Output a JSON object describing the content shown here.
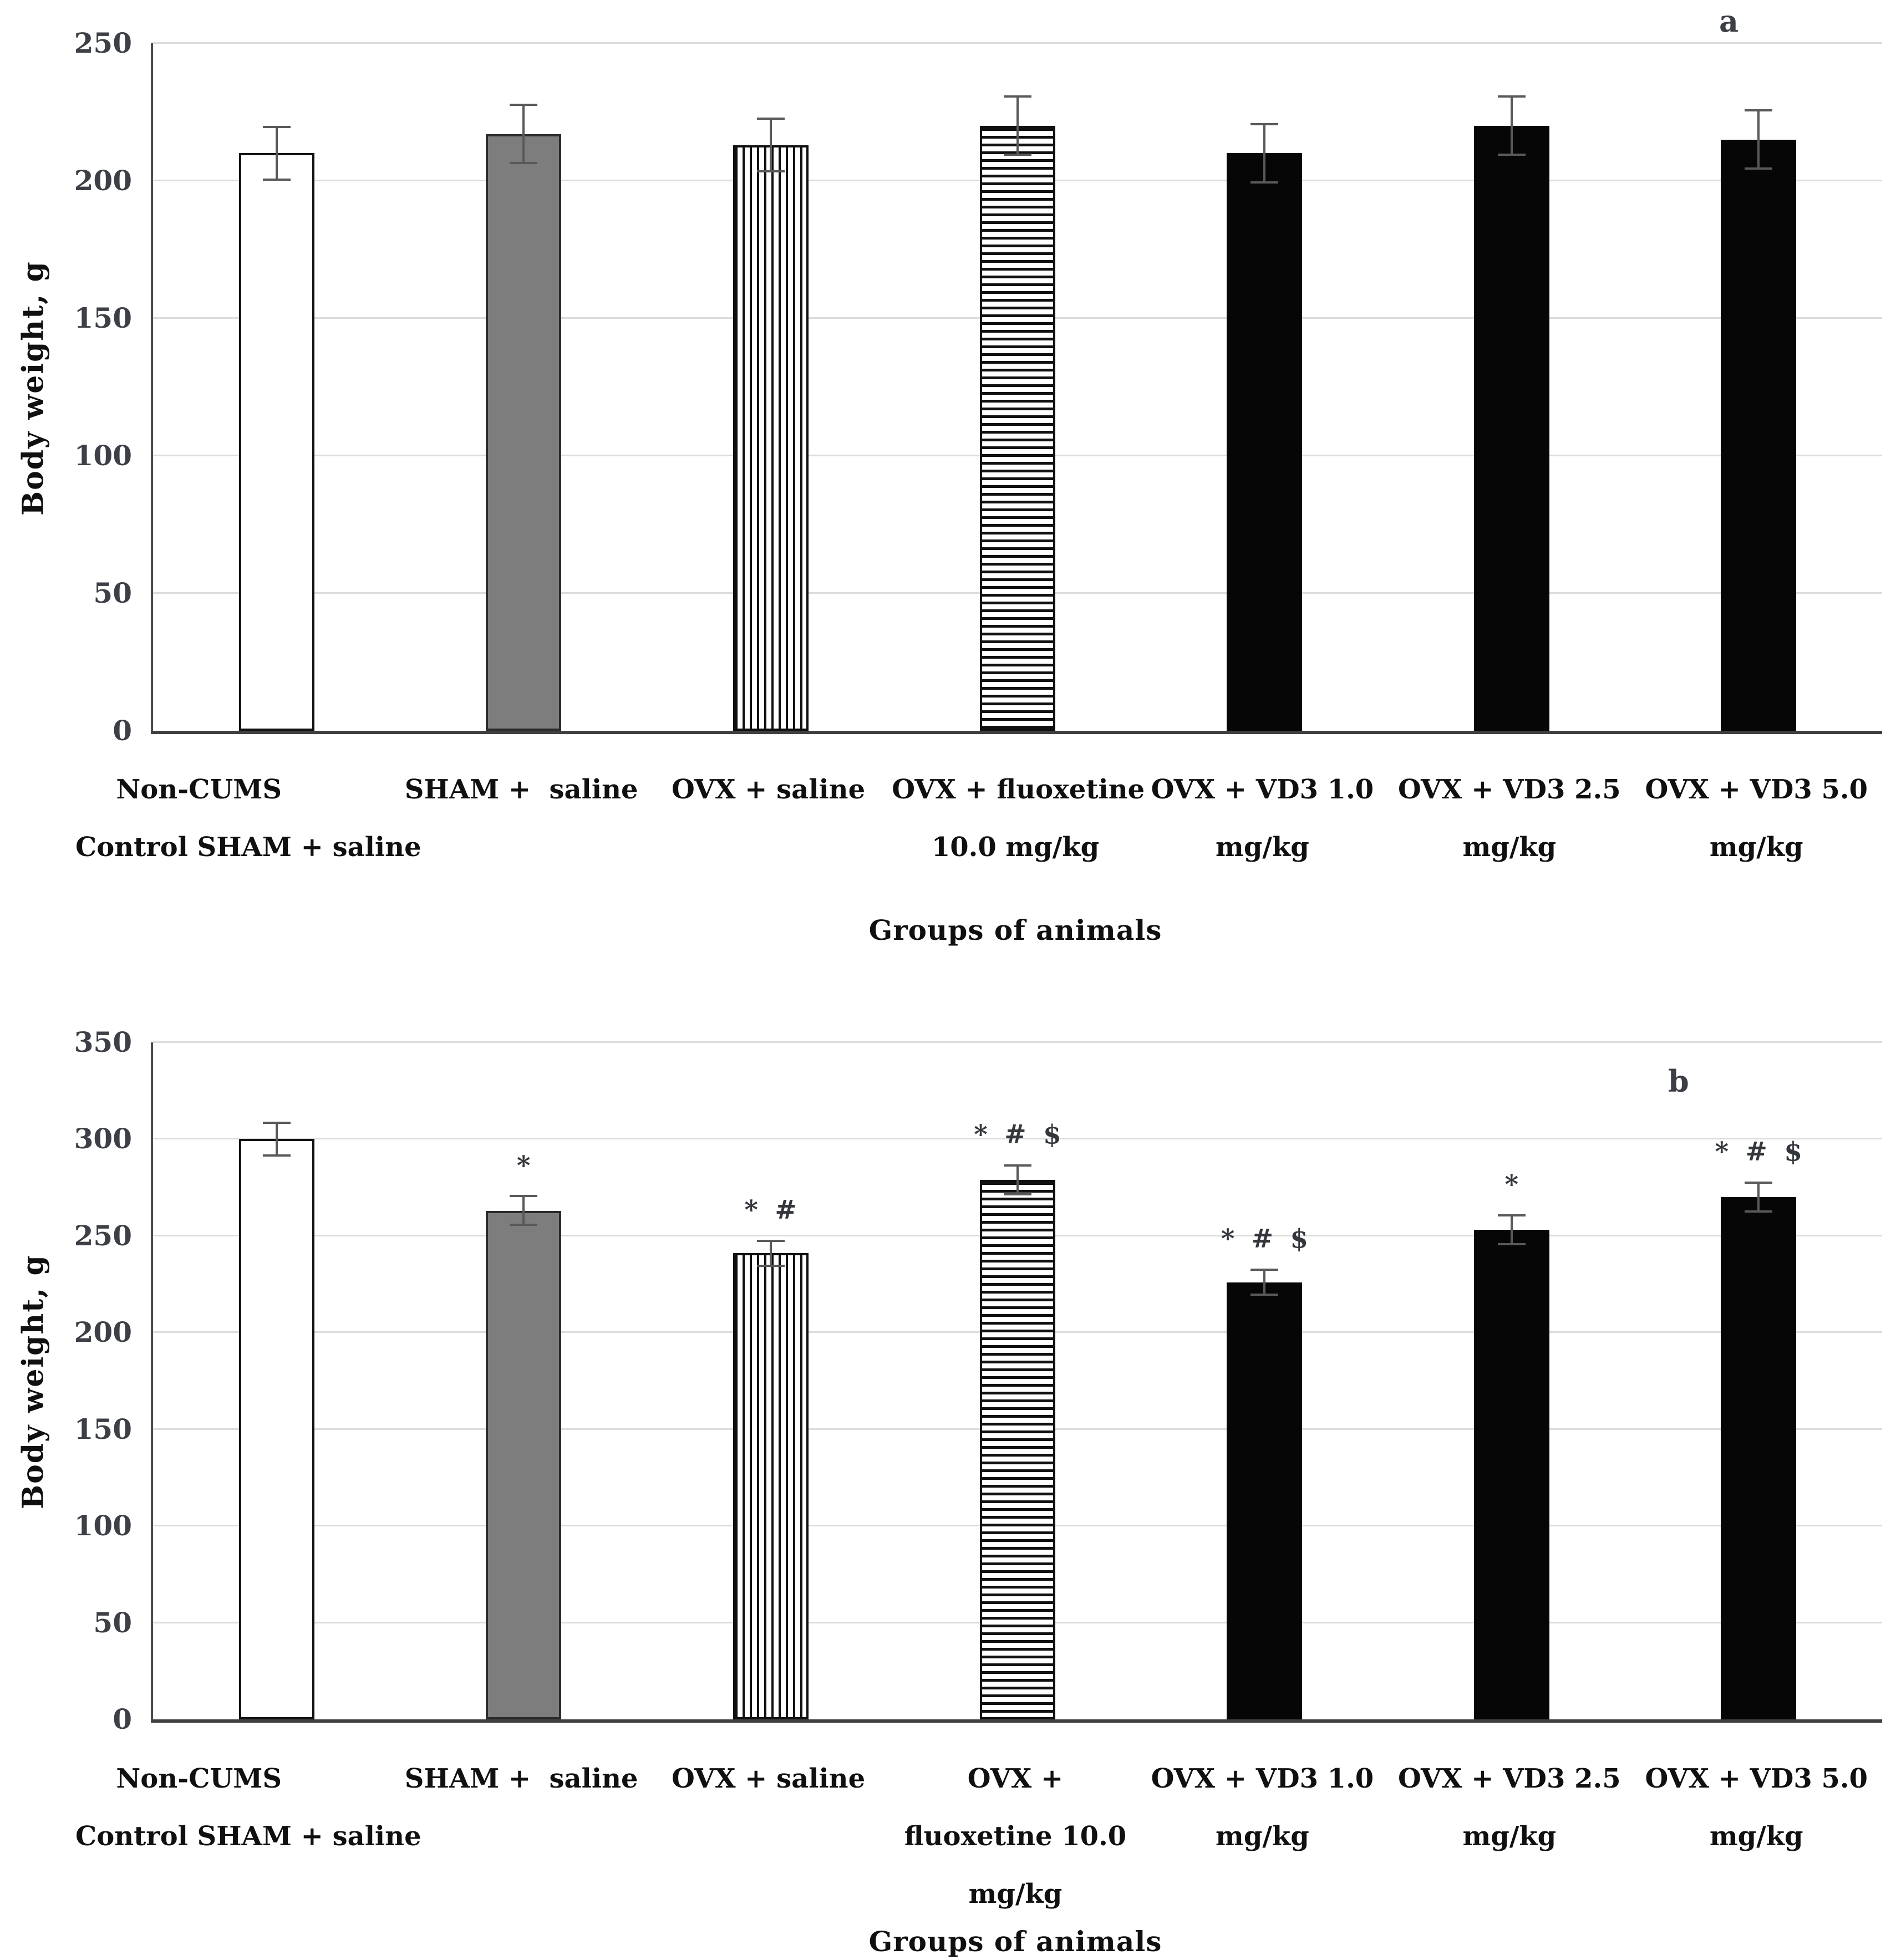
{
  "figure": {
    "background": "#ffffff",
    "panel_count": 2
  },
  "styles": {
    "gray_fill": "#7d7d7d",
    "black_fill": "#060606",
    "white_fill": "#ffffff",
    "axis_color": "#4a4a4a",
    "gridline_color": "#dcdcdc",
    "error_bar_color": "#595959",
    "text_color": "#151515"
  },
  "chart_data": [
    {
      "type": "bar",
      "panel_label": "a",
      "ylabel": "Body weight, g",
      "xlabel": "Groups of animals",
      "ylim": [
        0,
        250
      ],
      "ytick_step": 50,
      "yticks": [
        0,
        50,
        100,
        150,
        200,
        250
      ],
      "grid": true,
      "legend": "none",
      "categories": [
        [
          "Non-CUMS",
          "Control SHAM + saline"
        ],
        [
          "SHAM +  saline"
        ],
        [
          "OVX + saline"
        ],
        [
          "OVX + fluoxetine",
          "10.0 mg/kg"
        ],
        [
          "OVX + VD3 1.0",
          "mg/kg"
        ],
        [
          "OVX + VD3 2.5",
          "mg/kg"
        ],
        [
          "OVX + VD3 5.0",
          "mg/kg"
        ]
      ],
      "values": [
        210,
        217,
        213,
        220,
        210,
        220,
        215
      ],
      "errors": [
        10,
        11,
        10,
        11,
        11,
        11,
        11
      ],
      "annotations": [
        "",
        "",
        "",
        "",
        "",
        "",
        ""
      ],
      "bar_styles": [
        "white",
        "gray",
        "vertical-stripes",
        "horizontal-stripes",
        "black",
        "black",
        "black"
      ]
    },
    {
      "type": "bar",
      "panel_label": "b",
      "ylabel": "Body weight, g",
      "xlabel": "Groups of animals",
      "ylim": [
        0,
        350
      ],
      "ytick_step": 50,
      "yticks": [
        0,
        50,
        100,
        150,
        200,
        250,
        300,
        350
      ],
      "grid": true,
      "legend": "none",
      "categories": [
        [
          "Non-CUMS",
          "Control SHAM + saline"
        ],
        [
          "SHAM +  saline"
        ],
        [
          "OVX + saline"
        ],
        [
          "OVX +",
          "fluoxetine 10.0",
          "mg/kg"
        ],
        [
          "OVX + VD3 1.0",
          "mg/kg"
        ],
        [
          "OVX + VD3 2.5",
          "mg/kg"
        ],
        [
          "OVX + VD3 5.0",
          "mg/kg"
        ]
      ],
      "values": [
        300,
        263,
        241,
        279,
        226,
        253,
        270
      ],
      "errors": [
        9,
        8,
        7,
        8,
        7,
        8,
        8
      ],
      "annotations": [
        "",
        "*",
        "* #",
        "* # $",
        "* # $",
        "*",
        "* # $"
      ],
      "bar_styles": [
        "white",
        "gray",
        "vertical-stripes",
        "horizontal-stripes",
        "black",
        "black",
        "black"
      ]
    }
  ]
}
